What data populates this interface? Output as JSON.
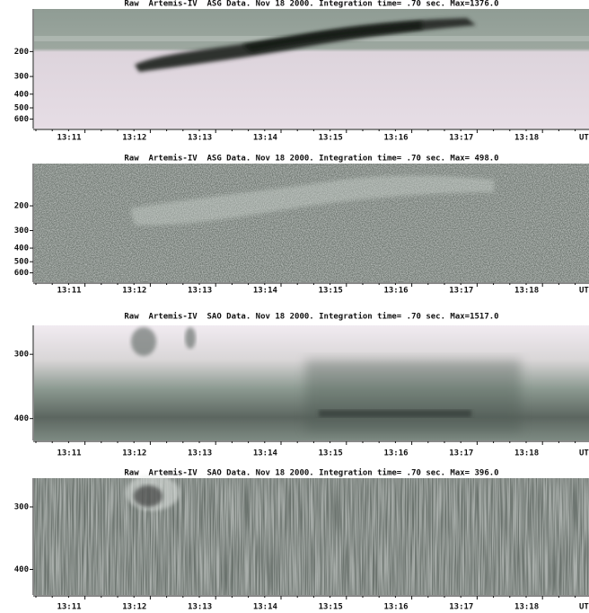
{
  "chart_data": [
    {
      "type": "spectrogram",
      "title": "Raw  Artemis-IV  ASG Data. Nov 18 2000. Integration time= .70 sec. Max=1376.0",
      "ylim": [
        700,
        100
      ],
      "yticks": [
        200,
        300,
        400,
        500,
        600
      ],
      "log_scale": true,
      "categories": [
        "13:11",
        "13:12",
        "13:13",
        "13:14",
        "13:15",
        "13:16",
        "13:17",
        "13:18"
      ],
      "xlabel": "UT"
    },
    {
      "type": "spectrogram",
      "title": "Raw  Artemis-IV  ASG Data. Nov 18 2000. Integration time= .70 sec. Max= 498.0",
      "ylim": [
        700,
        100
      ],
      "yticks": [
        200,
        300,
        400,
        500,
        600
      ],
      "log_scale": true,
      "categories": [
        "13:11",
        "13:12",
        "13:13",
        "13:14",
        "13:15",
        "13:16",
        "13:17",
        "13:18"
      ],
      "xlabel": "UT"
    },
    {
      "type": "spectrogram",
      "title": "Raw  Artemis-IV  SAO Data. Nov 18 2000. Integration time= .70 sec. Max=1517.0",
      "ylim": [
        434,
        255
      ],
      "yticks": [
        300,
        400
      ],
      "log_scale": false,
      "categories": [
        "13:11",
        "13:12",
        "13:13",
        "13:14",
        "13:15",
        "13:16",
        "13:17",
        "13:18"
      ],
      "xlabel": "UT"
    },
    {
      "type": "spectrogram",
      "title": "Raw  Artemis-IV  SAO Data. Nov 18 2000. Integration time= .70 sec. Max= 396.0",
      "ylim": [
        441,
        254
      ],
      "yticks": [
        300,
        400
      ],
      "log_scale": false,
      "categories": [
        "13:11",
        "13:12",
        "13:13",
        "13:14",
        "13:15",
        "13:16",
        "13:17",
        "13:18"
      ],
      "xlabel": "UT"
    }
  ]
}
